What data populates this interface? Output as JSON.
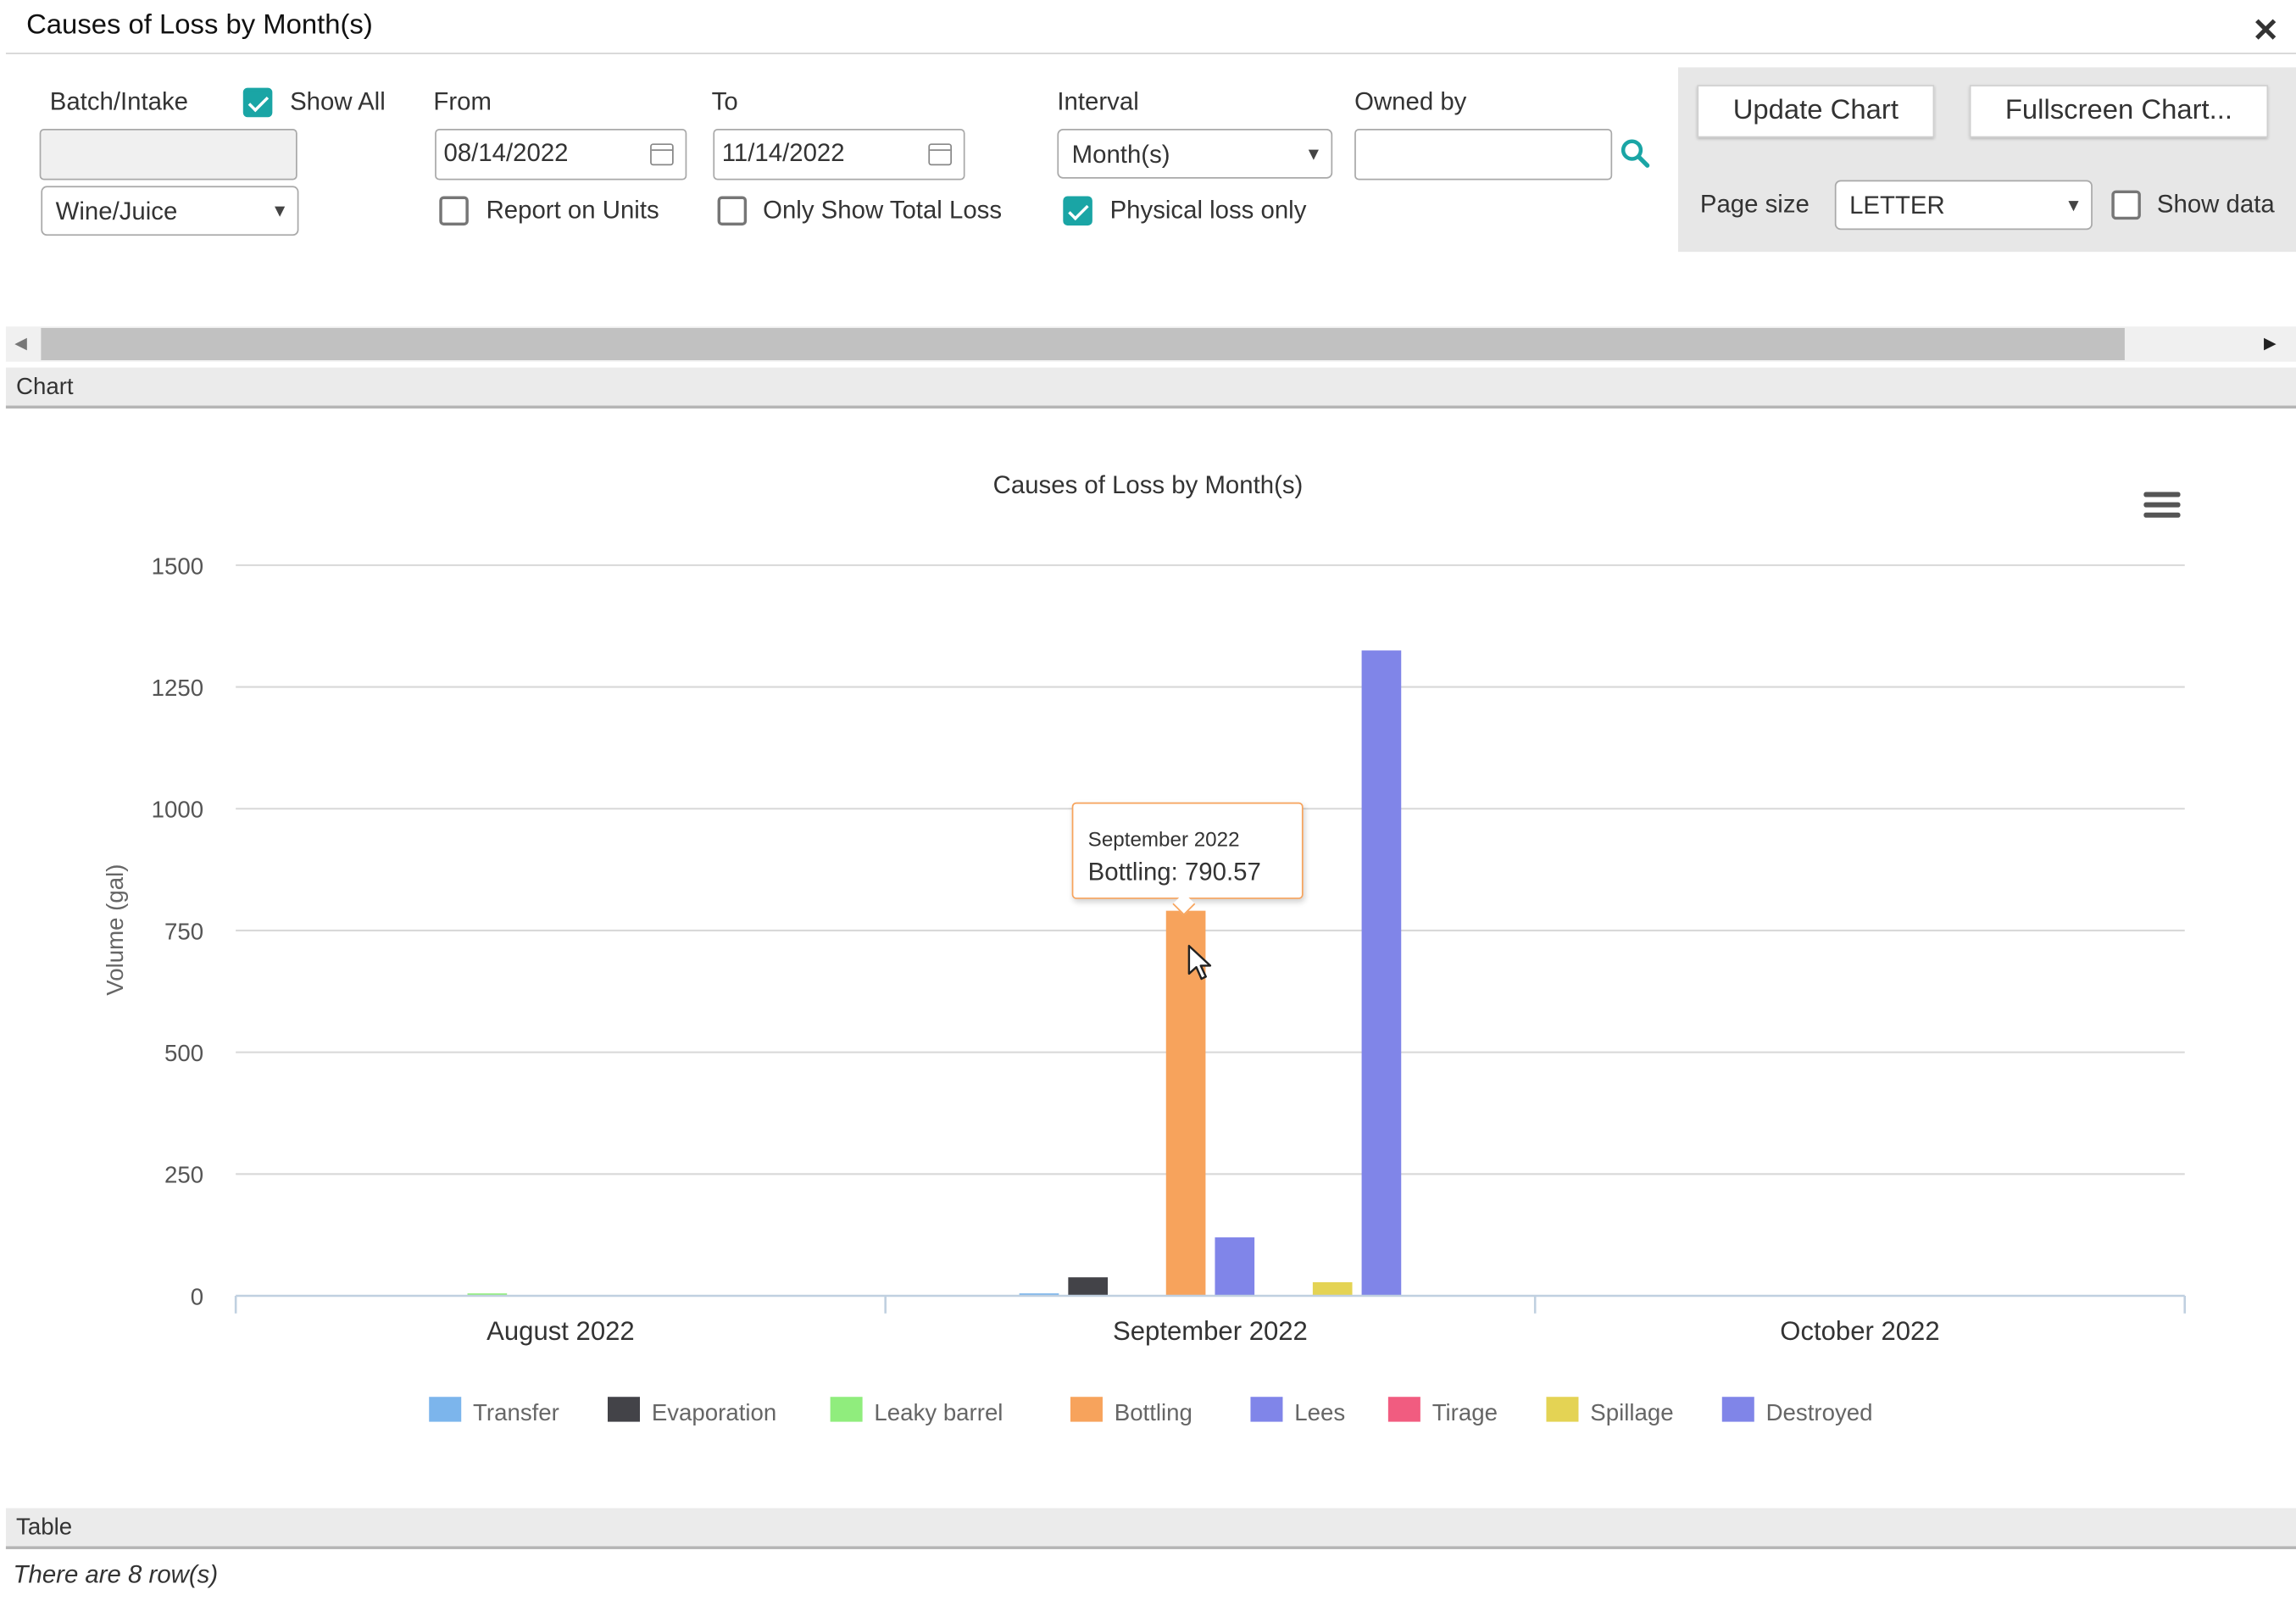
{
  "window": {
    "title": "Causes of Loss by Month(s)"
  },
  "filters": {
    "batch_label": "Batch/Intake",
    "show_all_label": "Show All",
    "show_all_checked": true,
    "batch_value": "",
    "type_value": "Wine/Juice",
    "from_label": "From",
    "from_value": "08/14/2022",
    "to_label": "To",
    "to_value": "11/14/2022",
    "interval_label": "Interval",
    "interval_value": "Month(s)",
    "owned_by_label": "Owned by",
    "owned_by_value": "",
    "report_units_label": "Report on Units",
    "report_units_checked": false,
    "only_total_label": "Only Show Total Loss",
    "only_total_checked": false,
    "physical_label": "Physical loss only",
    "physical_checked": true
  },
  "actions": {
    "update_label": "Update Chart",
    "fullscreen_label": "Fullscreen Chart...",
    "page_size_label": "Page size",
    "page_size_value": "LETTER",
    "show_data_label": "Show data",
    "show_data_checked": false
  },
  "sections": {
    "chart": "Chart",
    "table": "Table"
  },
  "status": "There are 8 row(s)",
  "tooltip": {
    "title": "September 2022",
    "text": "Bottling: 790.57"
  },
  "chart_data": {
    "type": "bar",
    "title": "Causes of Loss by Month(s)",
    "ylabel": "Volume (gal)",
    "xlabel": "",
    "ylim": [
      0,
      1500
    ],
    "yticks": [
      0,
      250,
      500,
      750,
      1000,
      1250,
      1500
    ],
    "categories": [
      "August 2022",
      "September 2022",
      "October 2022"
    ],
    "legend_position": "bottom",
    "grid": true,
    "series": [
      {
        "name": "Transfer",
        "color": "#7cb5ec",
        "values": [
          0,
          5,
          0
        ]
      },
      {
        "name": "Evaporation",
        "color": "#434348",
        "values": [
          0,
          38,
          0
        ]
      },
      {
        "name": "Leaky barrel",
        "color": "#90ed7d",
        "values": [
          5,
          0,
          0
        ]
      },
      {
        "name": "Bottling",
        "color": "#f7a35c",
        "values": [
          0,
          790.57,
          0
        ]
      },
      {
        "name": "Lees",
        "color": "#8085e9",
        "values": [
          0,
          120,
          0
        ]
      },
      {
        "name": "Tirage",
        "color": "#f15c80",
        "values": [
          0,
          0,
          0
        ]
      },
      {
        "name": "Spillage",
        "color": "#e4d354",
        "values": [
          0,
          28,
          0
        ]
      },
      {
        "name": "Destroyed",
        "color": "#8085e8",
        "values": [
          0,
          1325,
          0
        ]
      }
    ]
  }
}
